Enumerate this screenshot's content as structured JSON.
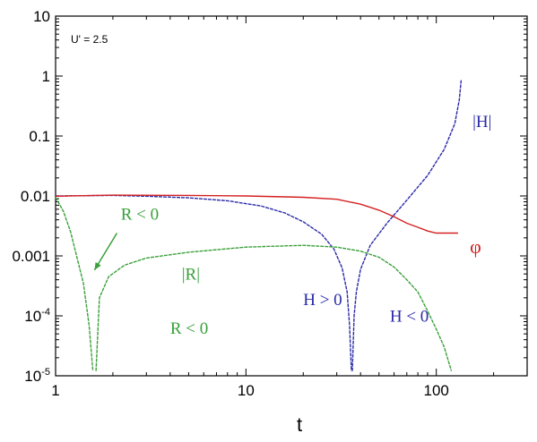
{
  "chart_data": {
    "type": "line",
    "x_scale": "log",
    "y_scale": "log",
    "xlim": [
      1,
      300
    ],
    "ylim": [
      1e-05,
      10
    ],
    "xlabel": "t",
    "ylabel": "",
    "x_ticks": [
      {
        "value": 1,
        "label": "1"
      },
      {
        "value": 10,
        "label": "10"
      },
      {
        "value": 100,
        "label": "100"
      }
    ],
    "y_ticks": [
      {
        "value": 10,
        "base": "10",
        "exp": ""
      },
      {
        "value": 1,
        "base": "1",
        "exp": ""
      },
      {
        "value": 0.1,
        "base": "0.1",
        "exp": ""
      },
      {
        "value": 0.01,
        "base": "0.01",
        "exp": ""
      },
      {
        "value": 0.001,
        "base": "0.001",
        "exp": ""
      },
      {
        "value": 0.0001,
        "base": "10",
        "exp": "-4"
      },
      {
        "value": 1e-05,
        "base": "10",
        "exp": "-5"
      }
    ],
    "grid": false,
    "parameter_label": "U' = 2.5",
    "series": [
      {
        "name": "|H|",
        "color": "#2a2aa8",
        "segments": [
          [
            [
              1,
              0.01
            ],
            [
              2,
              0.0102
            ],
            [
              3,
              0.0099
            ],
            [
              5,
              0.0093
            ],
            [
              8,
              0.0083
            ],
            [
              12,
              0.0068
            ],
            [
              16,
              0.0052
            ],
            [
              20,
              0.0037
            ],
            [
              25,
              0.0023
            ],
            [
              29,
              0.0013
            ],
            [
              32,
              0.00063
            ],
            [
              34,
              0.00025
            ],
            [
              35,
              7e-05
            ],
            [
              35.8,
              1.2e-05
            ]
          ],
          [
            [
              36.2,
              1.2e-05
            ],
            [
              37,
              0.0001
            ],
            [
              38,
              0.00025
            ],
            [
              40,
              0.0006
            ],
            [
              45,
              0.0015
            ],
            [
              55,
              0.0035
            ],
            [
              70,
              0.0085
            ],
            [
              90,
              0.022
            ],
            [
              110,
              0.06
            ],
            [
              125,
              0.16
            ],
            [
              132,
              0.4
            ],
            [
              135,
              0.85
            ]
          ]
        ]
      },
      {
        "name": "φ",
        "color": "#d42020",
        "segments": [
          [
            [
              1,
              0.0099
            ],
            [
              2,
              0.0103
            ],
            [
              5,
              0.0102
            ],
            [
              10,
              0.01
            ],
            [
              20,
              0.0095
            ],
            [
              30,
              0.0088
            ],
            [
              40,
              0.0073
            ],
            [
              50,
              0.0058
            ],
            [
              60,
              0.0045
            ],
            [
              70,
              0.0035
            ],
            [
              80,
              0.003
            ],
            [
              90,
              0.0026
            ],
            [
              100,
              0.0024
            ],
            [
              110,
              0.0024
            ],
            [
              120,
              0.0024
            ],
            [
              130,
              0.0024
            ]
          ]
        ]
      },
      {
        "name": "|R|",
        "color": "#3aa03a",
        "segments": [
          [
            [
              1,
              0.0095
            ],
            [
              1.1,
              0.0055
            ],
            [
              1.2,
              0.0025
            ],
            [
              1.3,
              0.0009
            ],
            [
              1.4,
              0.00035
            ],
            [
              1.5,
              7e-05
            ],
            [
              1.57,
              1.2e-05
            ]
          ],
          [
            [
              1.63,
              1.2e-05
            ],
            [
              1.7,
              0.0002
            ],
            [
              1.9,
              0.00045
            ],
            [
              2.3,
              0.0007
            ],
            [
              3,
              0.00092
            ],
            [
              5,
              0.00115
            ],
            [
              10,
              0.0014
            ],
            [
              20,
              0.0015
            ],
            [
              30,
              0.0014
            ],
            [
              40,
              0.0012
            ],
            [
              50,
              0.00095
            ],
            [
              60,
              0.00065
            ],
            [
              70,
              0.0004
            ],
            [
              80,
              0.00025
            ],
            [
              90,
              0.00012
            ],
            [
              100,
              6e-05
            ],
            [
              110,
              3e-05
            ],
            [
              120,
              1.2e-05
            ]
          ]
        ]
      }
    ],
    "annotations": [
      {
        "text": "|H|",
        "x": 155,
        "y": 0.14,
        "color": "#2a2aa8"
      },
      {
        "text": "φ",
        "x": 150,
        "y": 0.0011,
        "color": "#d42020"
      },
      {
        "text": "R < 0",
        "x": 2.2,
        "y": 0.004,
        "color": "#3aa03a"
      },
      {
        "text": "|R|",
        "x": 4.6,
        "y": 0.0004,
        "color": "#3aa03a"
      },
      {
        "text": "R < 0",
        "x": 4.0,
        "y": 5e-05,
        "color": "#3aa03a"
      },
      {
        "text": "H > 0",
        "x": 20,
        "y": 0.00015,
        "color": "#2a2aa8"
      },
      {
        "text": "H < 0",
        "x": 57,
        "y": 8e-05,
        "color": "#2a2aa8"
      }
    ],
    "arrow": {
      "from": [
        2.1,
        0.0024
      ],
      "to": [
        1.6,
        0.00058
      ],
      "color": "#3aa03a"
    }
  }
}
